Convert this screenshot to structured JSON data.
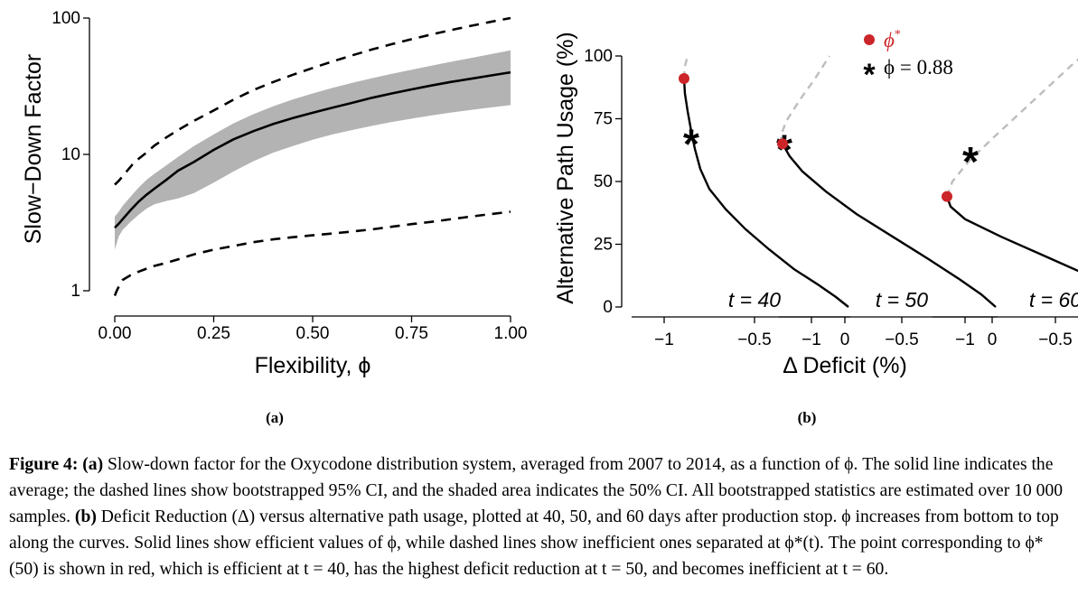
{
  "panel_a": {
    "sublabel": "(a)",
    "xlabel": "Flexibility, ϕ",
    "chart_data": {
      "type": "line",
      "xlabel": "Flexibility, ϕ",
      "ylabel": "Slow−Down Factor",
      "xlim": [
        0,
        1
      ],
      "ylim": [
        1,
        100
      ],
      "yscale": "log",
      "xticks": [
        "0.00",
        "0.25",
        "0.50",
        "0.75",
        "1.00"
      ],
      "yticks": [
        "1",
        "10",
        "100"
      ],
      "series": [
        {
          "style": "solid",
          "x": [
            0,
            0.01,
            0.02,
            0.04,
            0.06,
            0.08,
            0.1,
            0.13,
            0.16,
            0.2,
            0.25,
            0.3,
            0.35,
            0.4,
            0.45,
            0.5,
            0.55,
            0.6,
            0.65,
            0.7,
            0.75,
            0.8,
            0.85,
            0.9,
            0.95,
            1.0
          ],
          "y": [
            2.9,
            3.1,
            3.35,
            3.9,
            4.5,
            5.05,
            5.6,
            6.5,
            7.6,
            8.8,
            10.8,
            12.9,
            14.8,
            16.7,
            18.5,
            20.2,
            22.0,
            23.9,
            26.0,
            28.0,
            30.0,
            32.0,
            34.0,
            35.9,
            37.9,
            40.0
          ]
        },
        {
          "style": "band",
          "x": [
            0,
            0.01,
            0.02,
            0.04,
            0.06,
            0.08,
            0.1,
            0.13,
            0.16,
            0.2,
            0.25,
            0.3,
            0.35,
            0.4,
            0.45,
            0.5,
            0.55,
            0.6,
            0.65,
            0.7,
            0.75,
            0.8,
            0.85,
            0.9,
            0.95,
            1.0
          ],
          "upper": [
            3.5,
            3.8,
            4.2,
            4.9,
            5.7,
            6.5,
            7.2,
            8.3,
            9.6,
            11.5,
            14.0,
            16.9,
            19.7,
            22.5,
            25.3,
            28.0,
            30.7,
            33.5,
            36.2,
            39.0,
            41.8,
            44.8,
            47.8,
            51.0,
            54.3,
            58.0
          ],
          "lower": [
            2.0,
            2.5,
            2.8,
            3.2,
            3.6,
            4.0,
            4.3,
            4.55,
            4.75,
            5.2,
            6.2,
            7.5,
            8.9,
            10.3,
            11.5,
            12.8,
            14.0,
            15.1,
            16.2,
            17.3,
            18.3,
            19.3,
            20.3,
            21.2,
            22.1,
            23.0
          ]
        },
        {
          "style": "dashed",
          "x": [
            0,
            0.01,
            0.03,
            0.05,
            0.08,
            0.1,
            0.13,
            0.16,
            0.2,
            0.25,
            0.3,
            0.35,
            0.4,
            0.45,
            0.5,
            0.55,
            0.6,
            0.65,
            0.7,
            0.75,
            0.8,
            0.85,
            0.9,
            0.95,
            1.0
          ],
          "y": [
            6.0,
            6.4,
            7.5,
            8.8,
            10.3,
            11.6,
            13.3,
            15.1,
            17.6,
            21.0,
            25.2,
            29.6,
            33.9,
            38.4,
            43.0,
            48.0,
            53.3,
            58.8,
            64.4,
            70.0,
            75.8,
            81.7,
            87.7,
            93.8,
            100.0
          ]
        },
        {
          "style": "dashed",
          "x": [
            0,
            0.005,
            0.012,
            0.02,
            0.04,
            0.06,
            0.08,
            0.1,
            0.13,
            0.16,
            0.2,
            0.25,
            0.3,
            0.35,
            0.4,
            0.45,
            0.5,
            0.55,
            0.6,
            0.65,
            0.7,
            0.75,
            0.8,
            0.85,
            0.9,
            0.95,
            1.0
          ],
          "y": [
            0.92,
            1.0,
            1.1,
            1.2,
            1.3,
            1.38,
            1.45,
            1.52,
            1.6,
            1.7,
            1.85,
            2.0,
            2.13,
            2.27,
            2.38,
            2.47,
            2.55,
            2.63,
            2.72,
            2.82,
            2.95,
            3.08,
            3.2,
            3.35,
            3.5,
            3.65,
            3.8
          ]
        }
      ]
    }
  },
  "panel_b": {
    "sublabel": "(b)",
    "xlabel": "Δ Deficit (%)",
    "chart_data": {
      "type": "line",
      "ylabel": "Alternative Path Usage (%)",
      "xlabel": "Δ Deficit (%)",
      "ylim": [
        0,
        100
      ],
      "xlim": [
        -1.2,
        0
      ],
      "yticks": [
        "0",
        "25",
        "50",
        "75",
        "100"
      ],
      "xticks": [
        "−1",
        "−0.5",
        "0"
      ],
      "legend": {
        "position": "top-right",
        "entries": [
          {
            "marker": "dot",
            "color": "#cc2529",
            "label": "ϕ",
            "sup": "*"
          },
          {
            "marker": "star",
            "color": "#000000",
            "label": "ϕ = 0.88"
          }
        ]
      },
      "facets": [
        {
          "label": "t = 40",
          "solid": [
            [
              0.02,
              0
            ],
            [
              -0.05,
              4
            ],
            [
              -0.15,
              9
            ],
            [
              -0.28,
              15
            ],
            [
              -0.42,
              23
            ],
            [
              -0.55,
              31
            ],
            [
              -0.66,
              39
            ],
            [
              -0.75,
              47
            ],
            [
              -0.8,
              55
            ],
            [
              -0.83,
              63
            ],
            [
              -0.85,
              70
            ],
            [
              -0.87,
              78
            ],
            [
              -0.885,
              85
            ],
            [
              -0.89,
              91
            ]
          ],
          "dashed": [
            [
              -0.89,
              91
            ],
            [
              -0.885,
              96
            ],
            [
              -0.87,
              100
            ]
          ],
          "red_point": [
            -0.89,
            91
          ],
          "star_point": [
            -0.85,
            67
          ]
        },
        {
          "label": "t = 50",
          "solid": [
            [
              0.02,
              0
            ],
            [
              -0.06,
              5
            ],
            [
              -0.18,
              11
            ],
            [
              -0.35,
              19
            ],
            [
              -0.55,
              28
            ],
            [
              -0.75,
              37
            ],
            [
              -0.92,
              46
            ],
            [
              -1.05,
              54
            ],
            [
              -1.12,
              60
            ],
            [
              -1.16,
              65
            ]
          ],
          "dashed": [
            [
              -1.16,
              65
            ],
            [
              -1.17,
              68
            ],
            [
              -1.14,
              74
            ],
            [
              -1.06,
              83
            ],
            [
              -0.98,
              91
            ],
            [
              -0.9,
              100
            ]
          ],
          "red_point": [
            -1.16,
            65
          ],
          "star_point": [
            -1.15,
            65
          ]
        },
        {
          "label": "t = 60",
          "solid": [
            [
              0.02,
              0
            ],
            [
              -0.1,
              5
            ],
            [
              -0.3,
              12
            ],
            [
              -0.55,
              20
            ],
            [
              -0.8,
              28
            ],
            [
              -1.0,
              35
            ],
            [
              -1.08,
              40
            ],
            [
              -1.1,
              44
            ]
          ],
          "dashed": [
            [
              -1.1,
              44
            ],
            [
              -1.07,
              50
            ],
            [
              -0.98,
              58
            ],
            [
              -0.85,
              67
            ],
            [
              -0.7,
              77
            ],
            [
              -0.55,
              87
            ],
            [
              -0.4,
              97
            ],
            [
              -0.35,
              100
            ]
          ],
          "red_point": [
            -1.1,
            44
          ],
          "star_point": [
            -0.97,
            60
          ]
        }
      ]
    }
  },
  "caption": {
    "figure_label": "Figure 4:",
    "part_a_label": "(a)",
    "part_a_text": " Slow-down factor for the Oxycodone distribution system, averaged from 2007 to 2014, as a function of ϕ. The solid line indicates the average; the dashed lines show bootstrapped 95% CI, and the shaded area indicates the 50% CI. All bootstrapped statistics are estimated over 10 000 samples. ",
    "part_b_label": "(b)",
    "part_b_text": " Deficit Reduction (Δ) versus alternative path usage, plotted at 40, 50, and 60 days after production stop. ϕ increases from bottom to top along the curves. Solid lines show efficient values of ϕ, while dashed lines show inefficient ones separated at ϕ*(t). The point corresponding to ϕ*(50) is shown in red, which is efficient at t = 40, has the highest deficit reduction at t = 50, and becomes inefficient at t = 60."
  }
}
